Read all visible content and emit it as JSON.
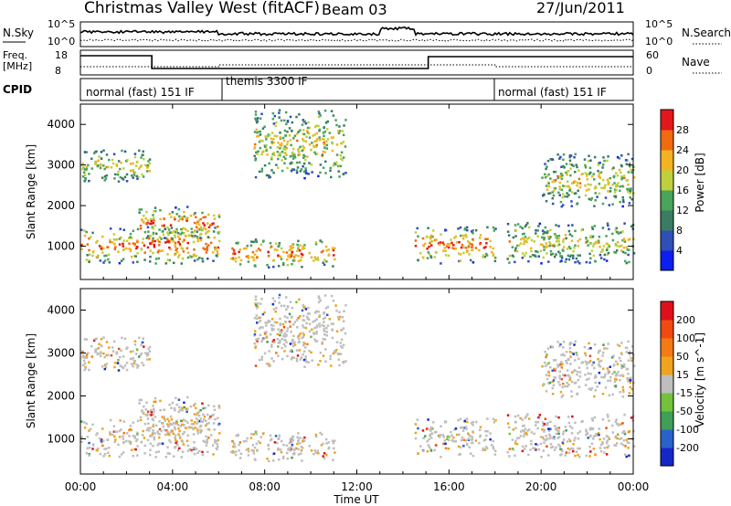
{
  "header": {
    "station": "Christmas Valley West (fitACF)",
    "beam": "Beam 03",
    "date": "27/Jun/2011"
  },
  "top_panels": {
    "nsky_label": "N.Sky",
    "nsearch_label": "N.Search",
    "log_ticks_left": [
      "10^5",
      "10^0"
    ],
    "log_ticks_right": [
      "10^5",
      "10^0"
    ],
    "freq_label_line1": "Freq.",
    "freq_label_line2": "[MHz]",
    "freq_ticks": [
      "18",
      "8"
    ],
    "nave_label": "Nave",
    "nave_ticks": [
      "60",
      "0"
    ],
    "cpid_label": "CPID",
    "cpid_segments": [
      "normal (fast) 151 IF",
      "themis 3300 IF",
      "normal (fast) 151 IF"
    ]
  },
  "chart_data": [
    {
      "type": "heatmap",
      "title": "",
      "xlabel": "",
      "ylabel": "Slant Range [km]",
      "y_ticks": [
        1000,
        2000,
        3000,
        4000
      ],
      "ylim": [
        180,
        4500
      ],
      "colorbar": {
        "label": "Power [dB]",
        "ticks": [
          "4",
          "8",
          "12",
          "16",
          "20",
          "24",
          "28"
        ],
        "colors": [
          "#0b1ff0",
          "#2f4fb8",
          "#3a7c62",
          "#4aa35a",
          "#bfd03c",
          "#f3b322",
          "#f06a10",
          "#e4171a"
        ]
      },
      "echo_bands": [
        {
          "t_start": 0.0,
          "t_end": 6.0,
          "r_min": 600,
          "r_max": 1500,
          "level": "high"
        },
        {
          "t_start": 2.5,
          "t_end": 6.0,
          "r_min": 1200,
          "r_max": 2000,
          "level": "high"
        },
        {
          "t_start": 0.0,
          "t_end": 3.0,
          "r_min": 2600,
          "r_max": 3400,
          "level": "medium"
        },
        {
          "t_start": 6.5,
          "t_end": 11.0,
          "r_min": 500,
          "r_max": 1200,
          "level": "high"
        },
        {
          "t_start": 7.5,
          "t_end": 11.5,
          "r_min": 2700,
          "r_max": 4400,
          "level": "medium"
        },
        {
          "t_start": 14.5,
          "t_end": 18.0,
          "r_min": 600,
          "r_max": 1500,
          "level": "high"
        },
        {
          "t_start": 18.5,
          "t_end": 24.0,
          "r_min": 600,
          "r_max": 1600,
          "level": "medium"
        },
        {
          "t_start": 20.0,
          "t_end": 24.0,
          "r_min": 2000,
          "r_max": 3300,
          "level": "medium"
        }
      ]
    },
    {
      "type": "heatmap",
      "title": "",
      "xlabel": "Time UT",
      "ylabel": "Slant Range [km]",
      "y_ticks": [
        1000,
        2000,
        3000,
        4000
      ],
      "ylim": [
        180,
        4500
      ],
      "x_tick_labels": [
        "00:00",
        "04:00",
        "08:00",
        "12:00",
        "16:00",
        "20:00",
        "00:00"
      ],
      "colorbar": {
        "label": "Velocity [m s^-1]",
        "ticks": [
          "200",
          "100",
          "50",
          "15",
          "-15",
          "-50",
          "-100",
          "-200"
        ],
        "colors": [
          "#1428c8",
          "#2b62c9",
          "#3f9f56",
          "#72c33a",
          "#bebebe",
          "#f0a31c",
          "#f37a14",
          "#f14a10",
          "#e0101a"
        ]
      }
    }
  ]
}
